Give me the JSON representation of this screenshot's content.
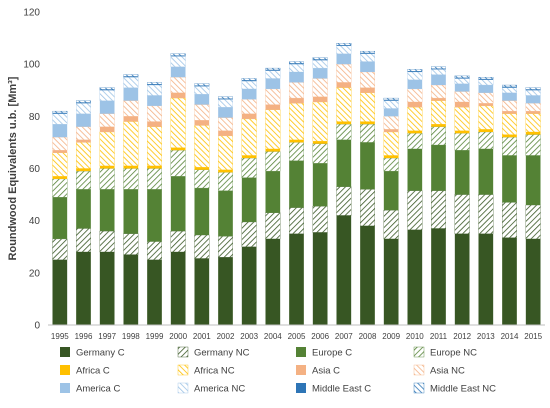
{
  "chart_data": {
    "type": "bar",
    "stacked": true,
    "title": "",
    "xlabel": "",
    "ylabel": "Roundwood Equivalents u.b. [Mm³]",
    "ylim": [
      0,
      120
    ],
    "yticks": [
      0,
      20,
      40,
      60,
      80,
      100,
      120
    ],
    "grid": false,
    "legend_position": "bottom",
    "categories": [
      "1995",
      "1996",
      "1997",
      "1998",
      "1999",
      "2000",
      "2001",
      "2002",
      "2003",
      "2004",
      "2005",
      "2006",
      "2007",
      "2008",
      "2009",
      "2010",
      "2011",
      "2012",
      "2013",
      "2014",
      "2015"
    ],
    "series": [
      {
        "name": "Germany C",
        "color": "#375623",
        "pattern": "solid",
        "values": [
          25,
          28,
          28,
          27,
          25,
          28,
          25.5,
          26,
          30,
          33,
          35,
          35.5,
          42,
          38,
          33,
          36.5,
          37,
          35,
          35,
          33.5,
          33
        ]
      },
      {
        "name": "Germany NC",
        "color": "#375623",
        "pattern": "hatch",
        "values": [
          8,
          9,
          8,
          8,
          7,
          8,
          9,
          8,
          9.5,
          10,
          10,
          10,
          11,
          14,
          11,
          15,
          14.5,
          15,
          15,
          13.5,
          13
        ]
      },
      {
        "name": "Europe C",
        "color": "#548235",
        "pattern": "solid",
        "values": [
          16,
          15,
          16,
          17,
          20,
          21,
          18,
          17.5,
          17,
          16,
          18,
          16.5,
          18,
          18,
          15,
          16,
          17.5,
          17,
          17.5,
          18,
          19
        ]
      },
      {
        "name": "Europe NC",
        "color": "#548235",
        "pattern": "hatch",
        "values": [
          7,
          7,
          8,
          8,
          8,
          10,
          7,
          7,
          7.5,
          7.5,
          7,
          7.5,
          6,
          7,
          5,
          6,
          7,
          6.5,
          6.5,
          7,
          8
        ]
      },
      {
        "name": "Africa C",
        "color": "#FFC000",
        "pattern": "solid",
        "values": [
          1,
          1,
          1,
          1,
          1,
          1,
          1,
          1,
          1,
          1,
          1,
          1,
          1,
          1,
          1,
          1,
          1,
          1,
          1,
          1,
          1
        ]
      },
      {
        "name": "Africa NC",
        "color": "#FFC000",
        "pattern": "hatch",
        "values": [
          9,
          10,
          13,
          17,
          15,
          19,
          16,
          13,
          14,
          15,
          14,
          15,
          13,
          11,
          9,
          9,
          9,
          9,
          9,
          8,
          7
        ]
      },
      {
        "name": "Asia C",
        "color": "#F4B183",
        "pattern": "solid",
        "values": [
          1,
          1,
          2,
          2,
          2,
          2,
          2,
          2,
          2,
          2,
          2,
          2,
          2,
          2,
          1,
          2,
          1,
          2,
          1,
          1,
          1
        ]
      },
      {
        "name": "Asia NC",
        "color": "#F4B183",
        "pattern": "hatch",
        "values": [
          5,
          5,
          5,
          6,
          6,
          6,
          6,
          5,
          5.5,
          6,
          6,
          7,
          7,
          6,
          5,
          5,
          5,
          4,
          4,
          4,
          3
        ]
      },
      {
        "name": "America C",
        "color": "#9DC3E6",
        "pattern": "solid",
        "values": [
          5,
          5,
          5,
          5,
          4,
          4,
          4,
          4,
          4,
          4,
          4,
          4,
          4,
          4,
          3,
          3.5,
          4,
          3,
          3,
          3,
          3
        ]
      },
      {
        "name": "America NC",
        "color": "#9DC3E6",
        "pattern": "hatch",
        "values": [
          4,
          4,
          4,
          4,
          4,
          4,
          3,
          3,
          3,
          3,
          3,
          3,
          3,
          3,
          3,
          3,
          2,
          2,
          2,
          2,
          2
        ]
      },
      {
        "name": "Middle East C",
        "color": "#2E75B6",
        "pattern": "solid",
        "values": [
          0.3,
          0.3,
          0.3,
          0.3,
          0.3,
          0.3,
          0.3,
          0.3,
          0.3,
          0.3,
          0.3,
          0.3,
          0.3,
          0.3,
          0.3,
          0.3,
          0.3,
          0.3,
          0.3,
          0.3,
          0.3
        ]
      },
      {
        "name": "Middle East NC",
        "color": "#2E75B6",
        "pattern": "hatch",
        "values": [
          0.7,
          0.7,
          0.7,
          0.7,
          0.7,
          0.7,
          0.7,
          0.7,
          0.7,
          0.7,
          0.7,
          0.7,
          0.7,
          0.7,
          0.7,
          0.7,
          0.7,
          0.7,
          0.7,
          0.7,
          0.7
        ]
      }
    ]
  }
}
